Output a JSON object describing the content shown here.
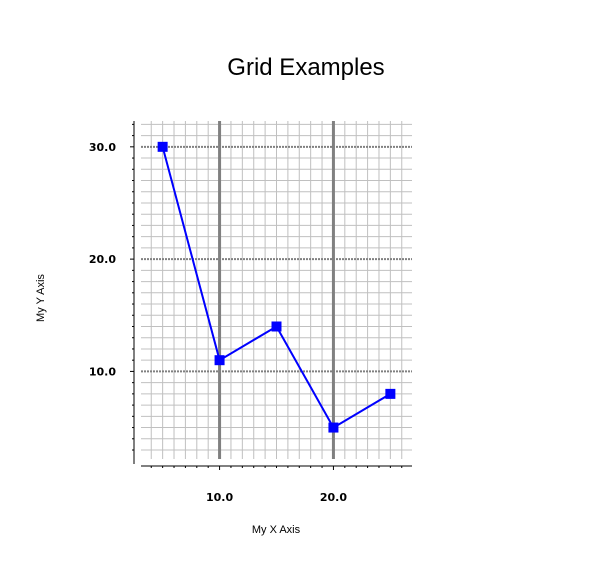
{
  "chart_data": {
    "type": "line",
    "title": "Grid Examples",
    "xlabel": "My X Axis",
    "ylabel": "My Y Axis",
    "xlim": [
      3.1,
      26.9
    ],
    "ylim": [
      2.2,
      32.3
    ],
    "x_major_ticks": [
      10,
      20
    ],
    "y_major_ticks": [
      10,
      20,
      30
    ],
    "x_tick_labels": [
      "10.0",
      "20.0"
    ],
    "y_tick_labels": [
      "10.0",
      "20.0",
      "30.0"
    ],
    "x_minor_step": 1,
    "y_minor_step": 1,
    "grid": true,
    "legend": "none",
    "series": [
      {
        "color": "#0000ff",
        "marker": "square",
        "x": [
          5,
          10,
          15,
          20,
          25
        ],
        "y": [
          30,
          11,
          14,
          5,
          8
        ]
      }
    ],
    "colors": {
      "line": "#0000ff",
      "minor_grid": "#c0c0c0",
      "major_grid": "#808080",
      "axis": "#000000"
    }
  }
}
